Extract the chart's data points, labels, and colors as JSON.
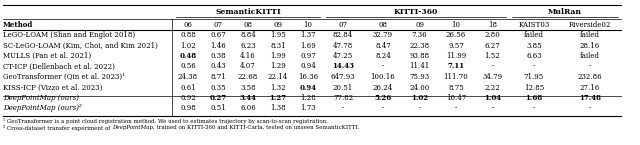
{
  "col_headers": [
    "Method",
    "06",
    "07",
    "08",
    "09",
    "10",
    "07",
    "08",
    "09",
    "10",
    "18",
    "KAIST03",
    "Riverside02"
  ],
  "group_headers": [
    {
      "label": "SemanticKITTI",
      "span_cols": [
        1,
        2,
        3,
        4,
        5
      ]
    },
    {
      "label": "KITTI-360",
      "span_cols": [
        6,
        7,
        8,
        9,
        10
      ]
    },
    {
      "label": "MulRan",
      "span_cols": [
        11,
        12
      ]
    }
  ],
  "rows": [
    {
      "method": "LeGO-LOAM (Shan and Englot 2018)",
      "italic": false,
      "values": [
        "0.88",
        "0.67",
        "8.84",
        "1.95",
        "1.37",
        "82.84",
        "32.79",
        "7.36",
        "26.56",
        "2.80",
        "failed",
        "failed"
      ],
      "bold_vals": []
    },
    {
      "method": "SC-LeGO-LOAM (Kim, Choi, and Kim 2021)",
      "italic": false,
      "values": [
        "1.02",
        "1.46",
        "6.23",
        "8.31",
        "1.69",
        "47.78",
        "8.47",
        "22.38",
        "9.57",
        "6.27",
        "3.85",
        "28.16"
      ],
      "bold_vals": []
    },
    {
      "method": "MULLS (Pan et al. 2021)",
      "italic": false,
      "values": [
        "0.48",
        "0.38",
        "4.16",
        "1.99",
        "0.97",
        "47.25",
        "8.24",
        "93.88",
        "11.99",
        "1.52",
        "6.63",
        "failed"
      ],
      "bold_vals": [
        0
      ]
    },
    {
      "method": "CT-ICP (Dellenbach et al. 2022)",
      "italic": false,
      "values": [
        "0.56",
        "0.43",
        "4.07",
        "1.29",
        "0.94",
        "14.43",
        "-",
        "11.41",
        "7.11",
        "-",
        "-",
        "-"
      ],
      "bold_vals": [
        5,
        8
      ]
    },
    {
      "method": "GeoTransformer (Qin et al. 2023)¹",
      "italic": false,
      "values": [
        "24.38",
        "8.71",
        "22.68",
        "22.14",
        "16.36",
        "647.93",
        "100.16",
        "75.93",
        "111.70",
        "34.79",
        "71.95",
        "232.86"
      ],
      "bold_vals": []
    },
    {
      "method": "KISS-ICP (Vizzo et al. 2023)",
      "italic": false,
      "values": [
        "0.61",
        "0.35",
        "3.58",
        "1.32",
        "0.94",
        "20.51",
        "26.24",
        "24.00",
        "8.75",
        "2.22",
        "12.85",
        "27.16"
      ],
      "bold_vals": [
        4
      ]
    },
    {
      "method": "DeepPointMap (ours)",
      "italic": true,
      "values": [
        "0.92",
        "0.27",
        "3.44",
        "1.27",
        "1.28",
        "77.82",
        "5.26",
        "1.02",
        "10.47",
        "1.04",
        "1.68",
        "17.48"
      ],
      "bold_vals": [
        1,
        2,
        3,
        6,
        7,
        9,
        10,
        11
      ]
    },
    {
      "method": "DeepPointMap (ours)²",
      "italic": true,
      "values": [
        "0.98",
        "0.51",
        "6.06",
        "1.38",
        "1.73",
        "-",
        "-",
        "-",
        "-",
        "-",
        "-",
        "-"
      ],
      "bold_vals": []
    }
  ],
  "footnote1": "¹ GeoTransformer is a point cloud registration method. We used to estimates trajectory by scan-to-scan registration.",
  "footnote2_parts": [
    [
      "² Cross-dataset transfer experiment of ",
      false
    ],
    [
      "DeepPointMap",
      true
    ],
    [
      ", trained on KITTI-360 and KITTI-Carla, tested on unseen SemanticKITTI.",
      false
    ]
  ]
}
